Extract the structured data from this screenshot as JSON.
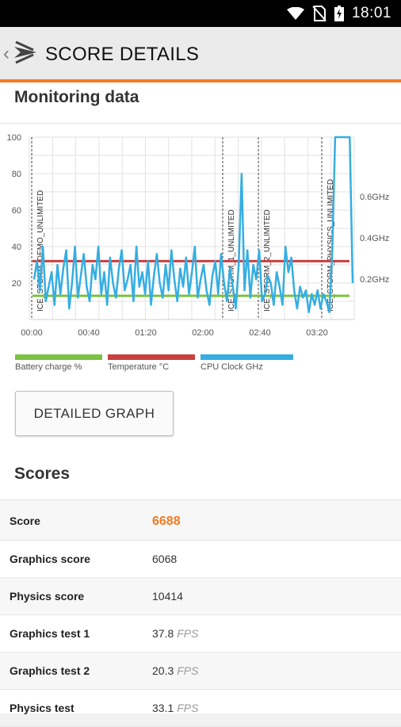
{
  "status_bar": {
    "time": "18:01"
  },
  "header": {
    "title": "SCORE DETAILS"
  },
  "monitoring": {
    "title": "Monitoring data"
  },
  "chart_data": {
    "type": "line",
    "x_ticks": [
      "00:00",
      "00:40",
      "01:20",
      "02:00",
      "02:40",
      "03:20"
    ],
    "y_ticks": [
      20,
      40,
      60,
      80,
      100
    ],
    "ylim": [
      0,
      100
    ],
    "y2_ticks": [
      "0.2GHz",
      "0.4GHz",
      "0.6GHz"
    ],
    "segments": [
      "ICE_STORM_DEMO_UNLIMITED",
      "ICE_STORM_1_UNLIMITED",
      "ICE_STORM_2_UNLIMITED",
      "ICE_STORM_PHYSICS_UNLIMITED"
    ],
    "series": [
      {
        "name": "Battery charge %",
        "color": "#7cc242",
        "values": [
          13,
          13
        ]
      },
      {
        "name": "Temperature °C",
        "color": "#c9403f",
        "values": [
          32,
          32
        ]
      },
      {
        "name": "CPU Clock GHz",
        "color": "#35aee2",
        "values": [
          22,
          32,
          16,
          40,
          10,
          18,
          26,
          8,
          30,
          14,
          28,
          38,
          6,
          20,
          40,
          12,
          24,
          36,
          18,
          10,
          30,
          22,
          40,
          14,
          26,
          8,
          34,
          20,
          12,
          28,
          38,
          16,
          22,
          30,
          10,
          40,
          18,
          26,
          14,
          32,
          8,
          24,
          36,
          20,
          12,
          30,
          16,
          38,
          22,
          10,
          28,
          18,
          34,
          14,
          26,
          40,
          12,
          22,
          30,
          16,
          8,
          24,
          32,
          14,
          36,
          20,
          10,
          28,
          18,
          6,
          30,
          80,
          16,
          38,
          12,
          30,
          22,
          38,
          10,
          14,
          24,
          20,
          8,
          26,
          18,
          8,
          40,
          26,
          34,
          16,
          6,
          18,
          12,
          16,
          4,
          14,
          8,
          16,
          6,
          14,
          10,
          4,
          36,
          100,
          100,
          100,
          100,
          100,
          100,
          20
        ]
      }
    ]
  },
  "legend": [
    {
      "label": "Battery charge %",
      "color": "#7cc242"
    },
    {
      "label": "Temperature °C",
      "color": "#c9403f"
    },
    {
      "label": "CPU Clock GHz",
      "color": "#35aee2"
    }
  ],
  "buttons": {
    "detailed_graph": "DETAILED GRAPH"
  },
  "scores": {
    "title": "Scores",
    "rows": [
      {
        "label": "Score",
        "value": "6688",
        "unit": ""
      },
      {
        "label": "Graphics score",
        "value": "6068",
        "unit": ""
      },
      {
        "label": "Physics score",
        "value": "10414",
        "unit": ""
      },
      {
        "label": "Graphics test 1",
        "value": "37.8",
        "unit": "FPS"
      },
      {
        "label": "Graphics test 2",
        "value": "20.3",
        "unit": "FPS"
      },
      {
        "label": "Physics test",
        "value": "33.1",
        "unit": "FPS"
      }
    ]
  }
}
